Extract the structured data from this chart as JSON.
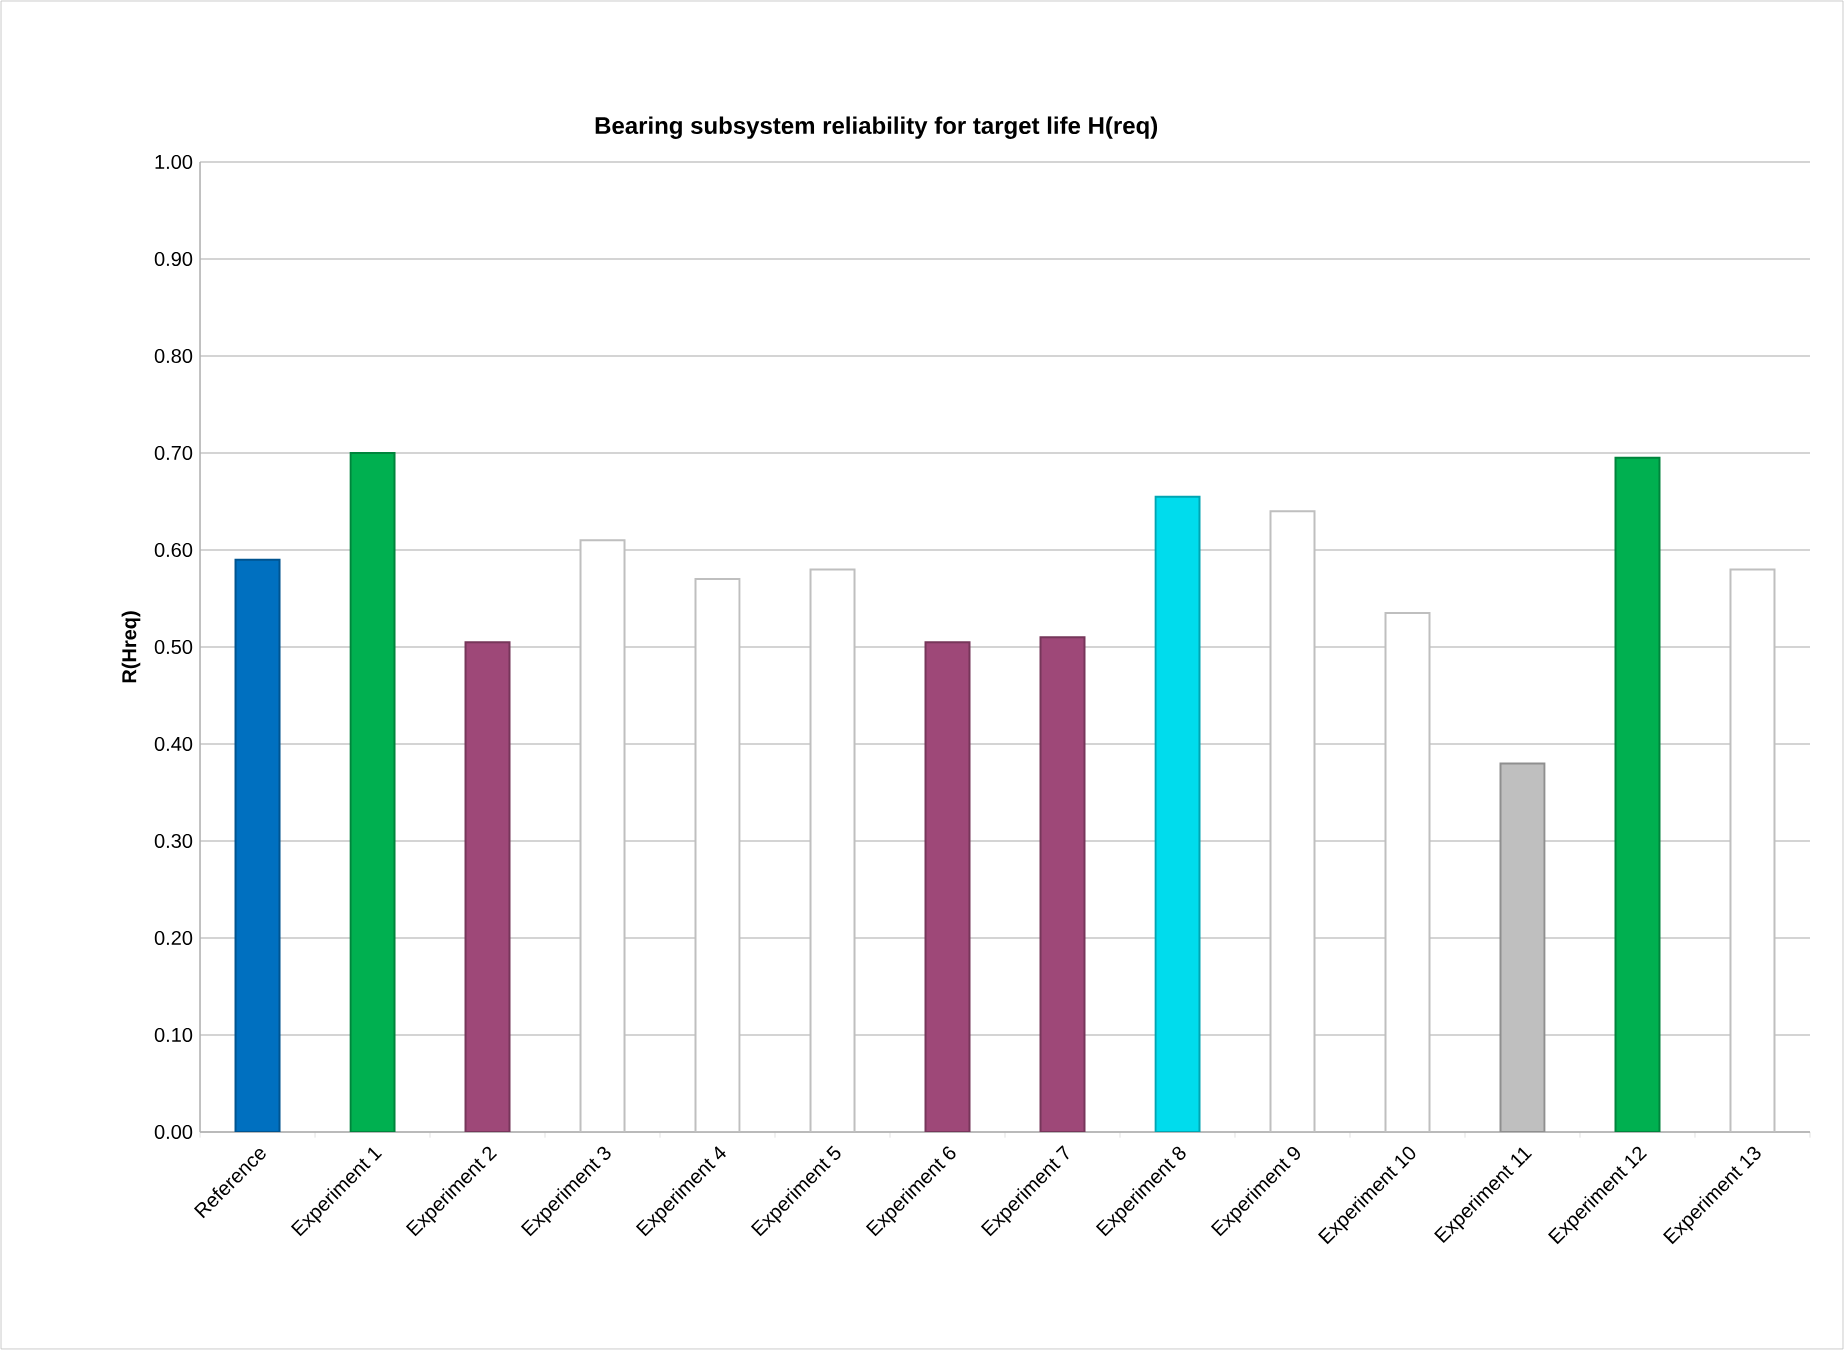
{
  "chart_data": {
    "type": "bar",
    "title": "Bearing subsystem reliability for target life H(req)",
    "ylabel": "R(Hreq)",
    "categories": [
      "Reference",
      "Experiment 1",
      "Experiment 2",
      "Experiment 3",
      "Experiment 4",
      "Experiment 5",
      "Experiment 6",
      "Experiment 7",
      "Experiment 8",
      "Experiment 9",
      "Experiment 10",
      "Experiment 11",
      "Experiment 12",
      "Experiment 13"
    ],
    "values": [
      0.59,
      0.7,
      0.505,
      0.61,
      0.57,
      0.58,
      0.505,
      0.51,
      0.655,
      0.64,
      0.535,
      0.38,
      0.695,
      0.58
    ],
    "colors": [
      "#0070c0",
      "#00b050",
      "#9e4878",
      "#ffffff",
      "#ffffff",
      "#ffffff",
      "#9e4878",
      "#9e4878",
      "#00dced",
      "#ffffff",
      "#ffffff",
      "#bfbfbf",
      "#00b050",
      "#ffffff"
    ],
    "ylim": [
      0,
      1
    ],
    "yticks": [
      {
        "value": 0,
        "label": "0.00"
      },
      {
        "value": 0.1,
        "label": "0.10"
      },
      {
        "value": 0.2,
        "label": "0.20"
      },
      {
        "value": 0.3,
        "label": "0.30"
      },
      {
        "value": 0.4,
        "label": "0.40"
      },
      {
        "value": 0.5,
        "label": "0.50"
      },
      {
        "value": 0.6,
        "label": "0.60"
      },
      {
        "value": 0.7,
        "label": "0.70"
      },
      {
        "value": 0.8,
        "label": "0.80"
      },
      {
        "value": 0.9,
        "label": "0.90"
      },
      {
        "value": 1,
        "label": "1.00"
      }
    ],
    "grid": "y"
  }
}
